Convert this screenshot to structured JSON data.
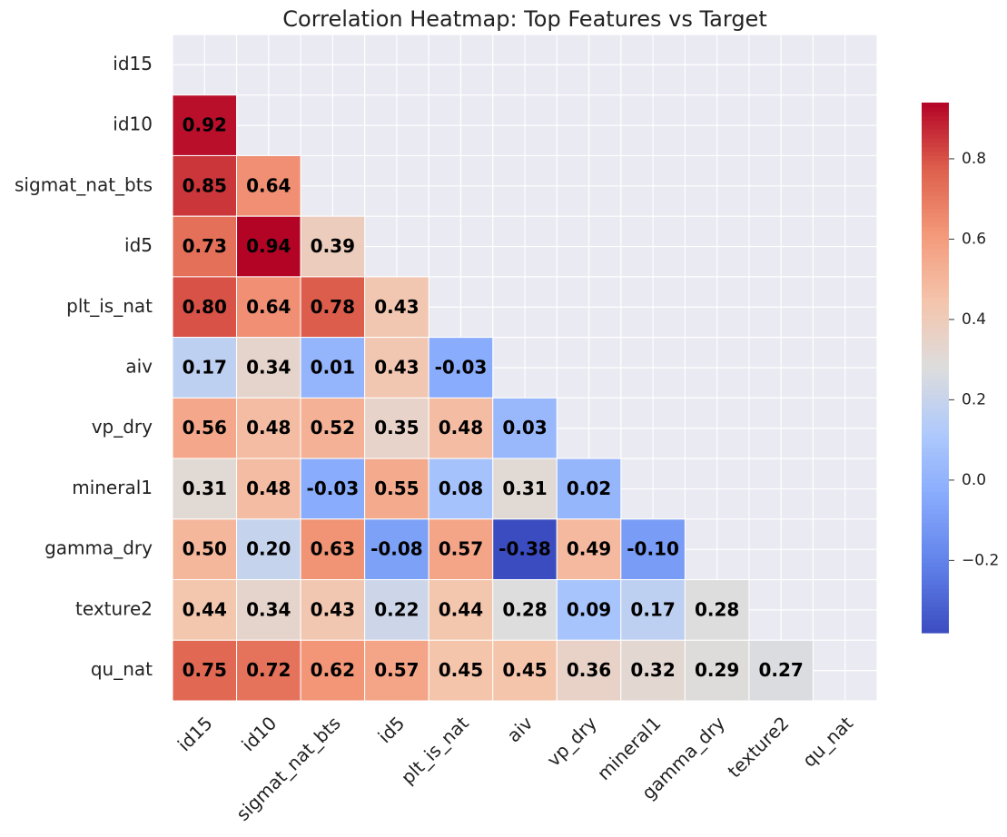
{
  "chart_data": {
    "type": "heatmap",
    "title": "Correlation Heatmap: Top Features vs Target",
    "x": [
      "id15",
      "id10",
      "sigmat_nat_bts",
      "id5",
      "plt_is_nat",
      "aiv",
      "vp_dry",
      "mineral1",
      "gamma_dry",
      "texture2",
      "qu_nat"
    ],
    "y": [
      "id15",
      "id10",
      "sigmat_nat_bts",
      "id5",
      "plt_is_nat",
      "aiv",
      "vp_dry",
      "mineral1",
      "gamma_dry",
      "texture2",
      "qu_nat"
    ],
    "values": [
      [
        null,
        null,
        null,
        null,
        null,
        null,
        null,
        null,
        null,
        null,
        null
      ],
      [
        0.92,
        null,
        null,
        null,
        null,
        null,
        null,
        null,
        null,
        null,
        null
      ],
      [
        0.85,
        0.64,
        null,
        null,
        null,
        null,
        null,
        null,
        null,
        null,
        null
      ],
      [
        0.73,
        0.94,
        0.39,
        null,
        null,
        null,
        null,
        null,
        null,
        null,
        null
      ],
      [
        0.8,
        0.64,
        0.78,
        0.43,
        null,
        null,
        null,
        null,
        null,
        null,
        null
      ],
      [
        0.17,
        0.34,
        0.01,
        0.43,
        -0.03,
        null,
        null,
        null,
        null,
        null,
        null
      ],
      [
        0.56,
        0.48,
        0.52,
        0.35,
        0.48,
        0.03,
        null,
        null,
        null,
        null,
        null
      ],
      [
        0.31,
        0.48,
        -0.03,
        0.55,
        0.08,
        0.31,
        0.02,
        null,
        null,
        null,
        null
      ],
      [
        0.5,
        0.2,
        0.63,
        -0.08,
        0.57,
        -0.38,
        0.49,
        -0.1,
        null,
        null,
        null
      ],
      [
        0.44,
        0.34,
        0.43,
        0.22,
        0.44,
        0.28,
        0.09,
        0.17,
        0.28,
        null,
        null
      ],
      [
        0.75,
        0.72,
        0.62,
        0.57,
        0.45,
        0.45,
        0.36,
        0.32,
        0.29,
        0.27,
        null
      ]
    ],
    "value_labels": [
      [
        null,
        null,
        null,
        null,
        null,
        null,
        null,
        null,
        null,
        null,
        null
      ],
      [
        "0.92",
        null,
        null,
        null,
        null,
        null,
        null,
        null,
        null,
        null,
        null
      ],
      [
        "0.85",
        "0.64",
        null,
        null,
        null,
        null,
        null,
        null,
        null,
        null,
        null
      ],
      [
        "0.73",
        "0.94",
        "0.39",
        null,
        null,
        null,
        null,
        null,
        null,
        null,
        null
      ],
      [
        "0.80",
        "0.64",
        "0.78",
        "0.43",
        null,
        null,
        null,
        null,
        null,
        null,
        null
      ],
      [
        "0.17",
        "0.34",
        "0.01",
        "0.43",
        "-0.03",
        null,
        null,
        null,
        null,
        null,
        null
      ],
      [
        "0.56",
        "0.48",
        "0.52",
        "0.35",
        "0.48",
        "0.03",
        null,
        null,
        null,
        null,
        null
      ],
      [
        "0.31",
        "0.48",
        "-0.03",
        "0.55",
        "0.08",
        "0.31",
        "0.02",
        null,
        null,
        null,
        null
      ],
      [
        "0.50",
        "0.20",
        "0.63",
        "-0.08",
        "0.57",
        "-0.38",
        "0.49",
        "-0.10",
        null,
        null,
        null
      ],
      [
        "0.44",
        "0.34",
        "0.43",
        "0.22",
        "0.44",
        "0.28",
        "0.09",
        "0.17",
        "0.28",
        null,
        null
      ],
      [
        "0.75",
        "0.72",
        "0.62",
        "0.57",
        "0.45",
        "0.45",
        "0.36",
        "0.32",
        "0.29",
        "0.27",
        null
      ]
    ],
    "colormap": "coolwarm",
    "clim": [
      -0.38,
      0.94
    ],
    "cticks": [
      {
        "value": -0.2,
        "label": "−0.2"
      },
      {
        "value": 0,
        "label": "0.0"
      },
      0.2,
      0.4,
      0.6,
      0.8
    ]
  }
}
